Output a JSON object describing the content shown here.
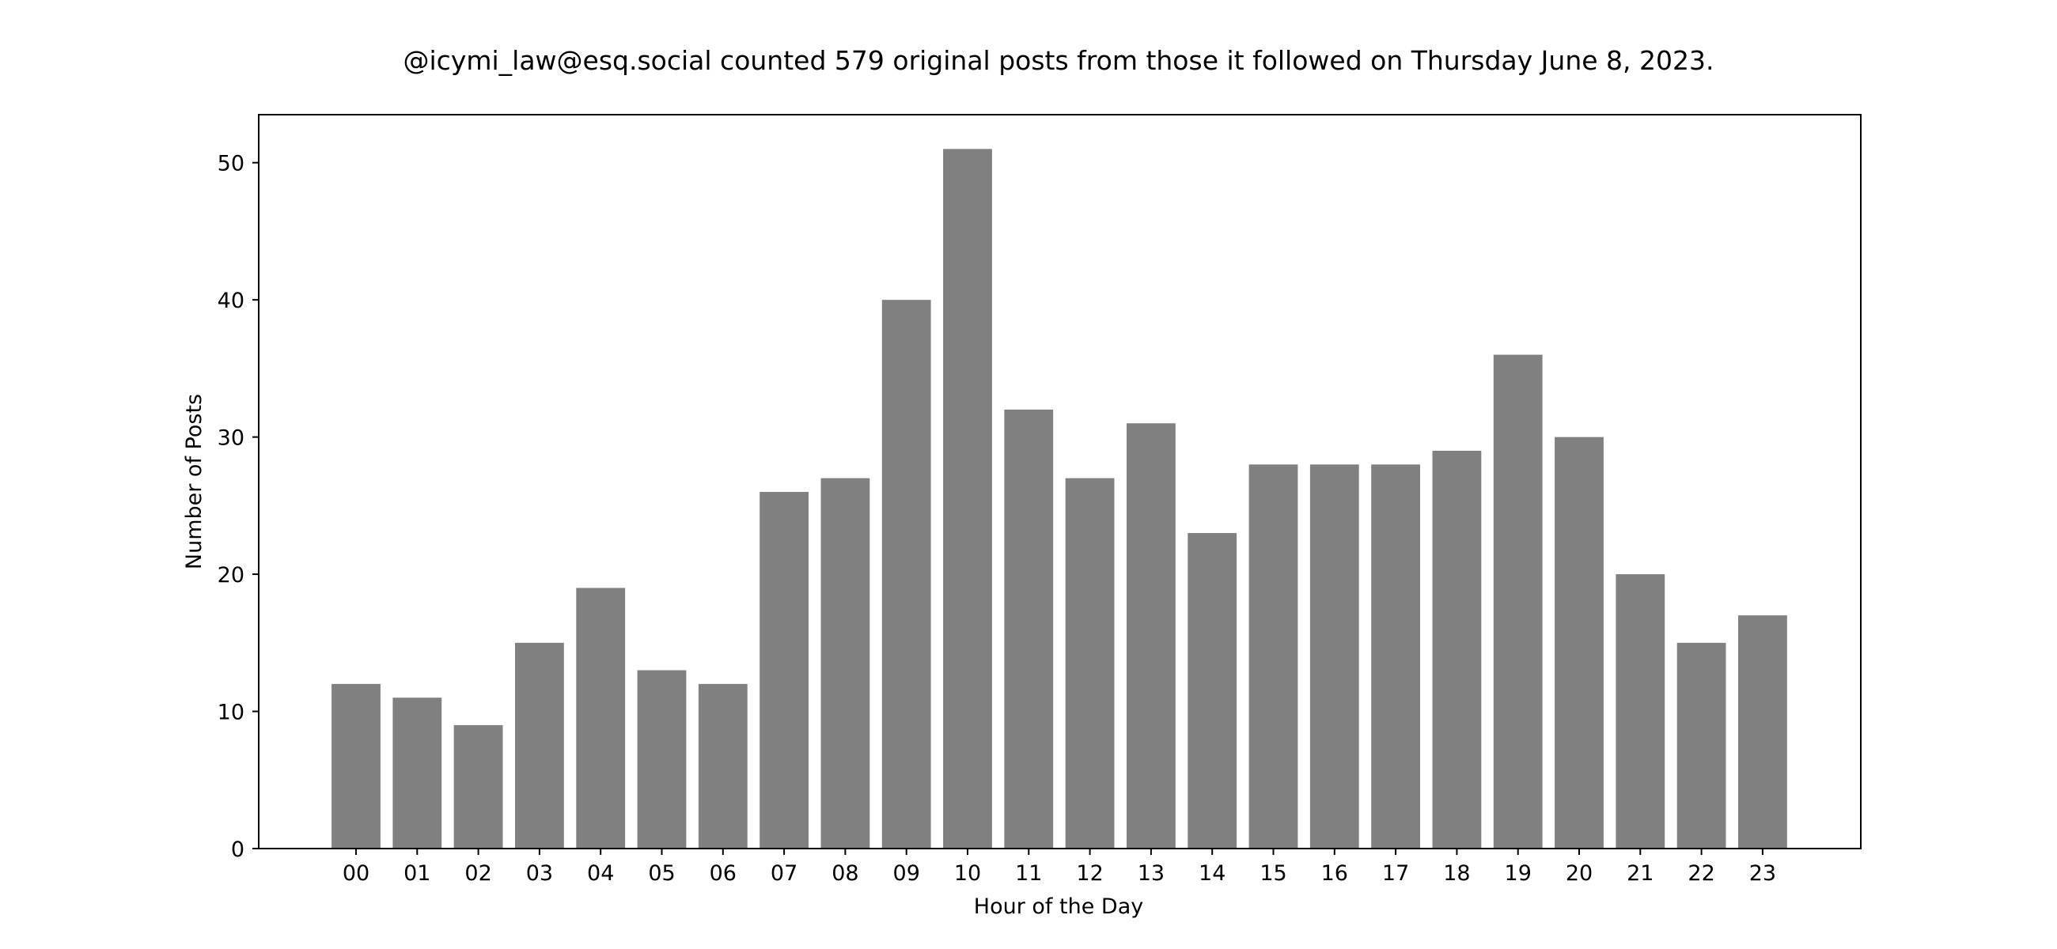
{
  "chart_data": {
    "type": "bar",
    "title": "@icymi_law@esq.social counted 579 original posts from those it followed on Thursday June 8, 2023.",
    "xlabel": "Hour of the Day",
    "ylabel": "Number of Posts",
    "categories": [
      "00",
      "01",
      "02",
      "03",
      "04",
      "05",
      "06",
      "07",
      "08",
      "09",
      "10",
      "11",
      "12",
      "13",
      "14",
      "15",
      "16",
      "17",
      "18",
      "19",
      "20",
      "21",
      "22",
      "23"
    ],
    "values": [
      12,
      11,
      9,
      15,
      19,
      13,
      12,
      26,
      27,
      40,
      51,
      32,
      27,
      31,
      23,
      28,
      28,
      28,
      29,
      36,
      30,
      20,
      15,
      17
    ],
    "ylim": [
      0,
      53.5
    ],
    "yticks": [
      0,
      10,
      20,
      30,
      40,
      50
    ],
    "bar_color": "#808080",
    "grid": false,
    "legend": "none"
  }
}
